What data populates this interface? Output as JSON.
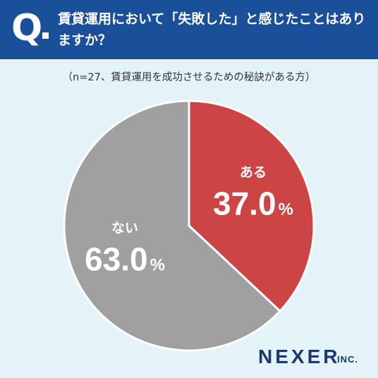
{
  "header": {
    "q_mark": "Q",
    "question": "賃貸運用において「失敗した」と感じたことはありますか？"
  },
  "subtitle": "（n=27、賃貸運用を成功させるための秘訣がある方）",
  "brand": {
    "name": "NEXER",
    "suffix": "INC."
  },
  "colors": {
    "header_bg": "#1a4f9a",
    "background": "#e3f3f8",
    "yes_slice": "#cc4444",
    "no_slice": "#a0a0a0"
  },
  "chart_data": {
    "type": "pie",
    "title": "",
    "slices": [
      {
        "label": "ある",
        "value": 37.0,
        "display": "37.0",
        "unit": "%",
        "color": "#cc4444"
      },
      {
        "label": "ない",
        "value": 63.0,
        "display": "63.0",
        "unit": "%",
        "color": "#a0a0a0"
      }
    ]
  }
}
